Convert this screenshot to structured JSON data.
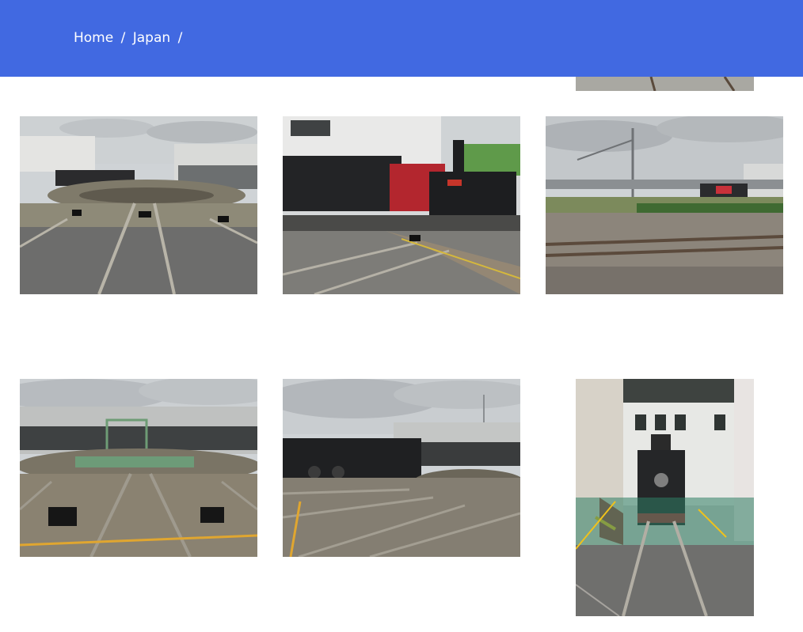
{
  "breadcrumb": {
    "home_label": "Home",
    "separator": "/",
    "section_label": "Japan",
    "trailing_separator": "/"
  },
  "colors": {
    "header_bg": "#4169e1",
    "header_text": "#ffffff",
    "page_bg": "#ffffff"
  },
  "gallery": {
    "photos": [
      {
        "id": "top-partial",
        "orientation": "portrait",
        "subject": "rail-tracks-icon"
      },
      {
        "id": "p1",
        "orientation": "landscape",
        "subject": "turntable-roundhouse-icon"
      },
      {
        "id": "p2",
        "orientation": "landscape",
        "subject": "steam-locomotive-icon"
      },
      {
        "id": "p3",
        "orientation": "landscape",
        "subject": "railway-yard-icon"
      },
      {
        "id": "p4",
        "orientation": "landscape",
        "subject": "turntable-roundhouse-icon"
      },
      {
        "id": "p5",
        "orientation": "landscape",
        "subject": "turntable-locomotive-icon"
      },
      {
        "id": "p6",
        "orientation": "portrait",
        "subject": "locomotive-in-shed-icon"
      }
    ]
  }
}
